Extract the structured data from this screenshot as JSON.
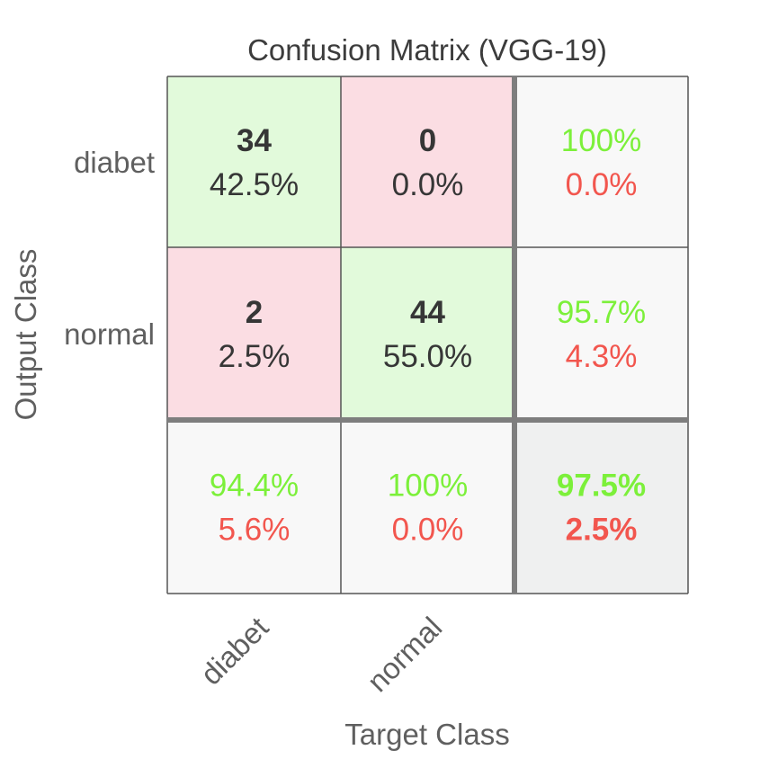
{
  "chart_data": {
    "type": "heatmap",
    "title": "Confusion Matrix (VGG-19)",
    "xlabel": "Target Class",
    "ylabel": "Output Class",
    "classes": [
      "diabet",
      "normal"
    ],
    "matrix": [
      [
        {
          "count": "34",
          "percent": "42.5%"
        },
        {
          "count": "0",
          "percent": "0.0%"
        }
      ],
      [
        {
          "count": "2",
          "percent": "2.5%"
        },
        {
          "count": "44",
          "percent": "55.0%"
        }
      ]
    ],
    "row_summary": [
      {
        "correct": "100%",
        "error": "0.0%"
      },
      {
        "correct": "95.7%",
        "error": "4.3%"
      }
    ],
    "col_summary": [
      {
        "correct": "94.4%",
        "error": "5.6%"
      },
      {
        "correct": "100%",
        "error": "0.0%"
      }
    ],
    "overall": {
      "correct": "97.5%",
      "error": "2.5%"
    },
    "colors": {
      "correct_cell": "#e2fadb",
      "error_cell": "#fbdde3",
      "summary_cell": "#f8f8f8",
      "overall_cell": "#eff0f0",
      "correct_text": "#7cf03a",
      "error_text": "#f2564e",
      "grid": "#555555",
      "divider": "#7e7e7e"
    }
  }
}
